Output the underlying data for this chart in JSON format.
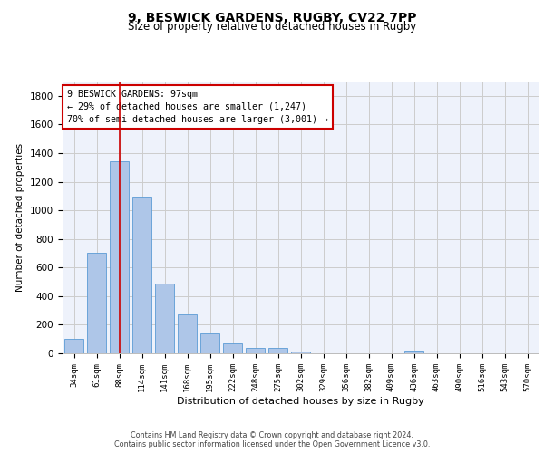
{
  "title_line1": "9, BESWICK GARDENS, RUGBY, CV22 7PP",
  "title_line2": "Size of property relative to detached houses in Rugby",
  "xlabel": "Distribution of detached houses by size in Rugby",
  "ylabel": "Number of detached properties",
  "categories": [
    "34sqm",
    "61sqm",
    "88sqm",
    "114sqm",
    "141sqm",
    "168sqm",
    "195sqm",
    "222sqm",
    "248sqm",
    "275sqm",
    "302sqm",
    "329sqm",
    "356sqm",
    "382sqm",
    "409sqm",
    "436sqm",
    "463sqm",
    "490sqm",
    "516sqm",
    "543sqm",
    "570sqm"
  ],
  "values": [
    100,
    700,
    1340,
    1095,
    490,
    270,
    140,
    70,
    35,
    35,
    15,
    0,
    0,
    0,
    0,
    20,
    0,
    0,
    0,
    0,
    0
  ],
  "bar_color": "#aec6e8",
  "bar_edge_color": "#5b9bd5",
  "annotation_text": "9 BESWICK GARDENS: 97sqm\n← 29% of detached houses are smaller (1,247)\n70% of semi-detached houses are larger (3,001) →",
  "annotation_box_color": "#ffffff",
  "annotation_box_edge": "#cc0000",
  "vline_color": "#cc0000",
  "vline_x_index": 2,
  "ylim": [
    0,
    1900
  ],
  "yticks": [
    0,
    200,
    400,
    600,
    800,
    1000,
    1200,
    1400,
    1600,
    1800
  ],
  "grid_color": "#cccccc",
  "bg_color": "#eef2fb",
  "footer1": "Contains HM Land Registry data © Crown copyright and database right 2024.",
  "footer2": "Contains public sector information licensed under the Open Government Licence v3.0."
}
